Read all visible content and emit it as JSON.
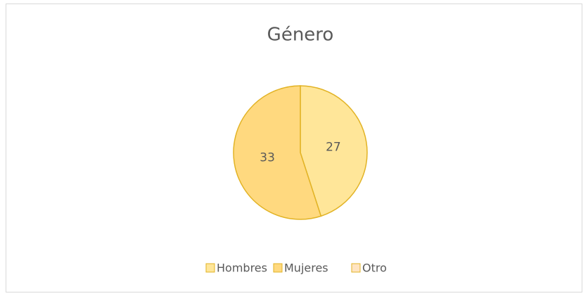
{
  "chart_data": {
    "type": "pie",
    "title": "Género",
    "categories": [
      "Hombres",
      "Mujeres",
      "Otro"
    ],
    "values": [
      27,
      33,
      0
    ],
    "value_labels": [
      "27",
      "33",
      null
    ],
    "colors": [
      "#FFE699",
      "#FFD97F",
      "#FFE4C2"
    ],
    "legend": "bottom"
  }
}
